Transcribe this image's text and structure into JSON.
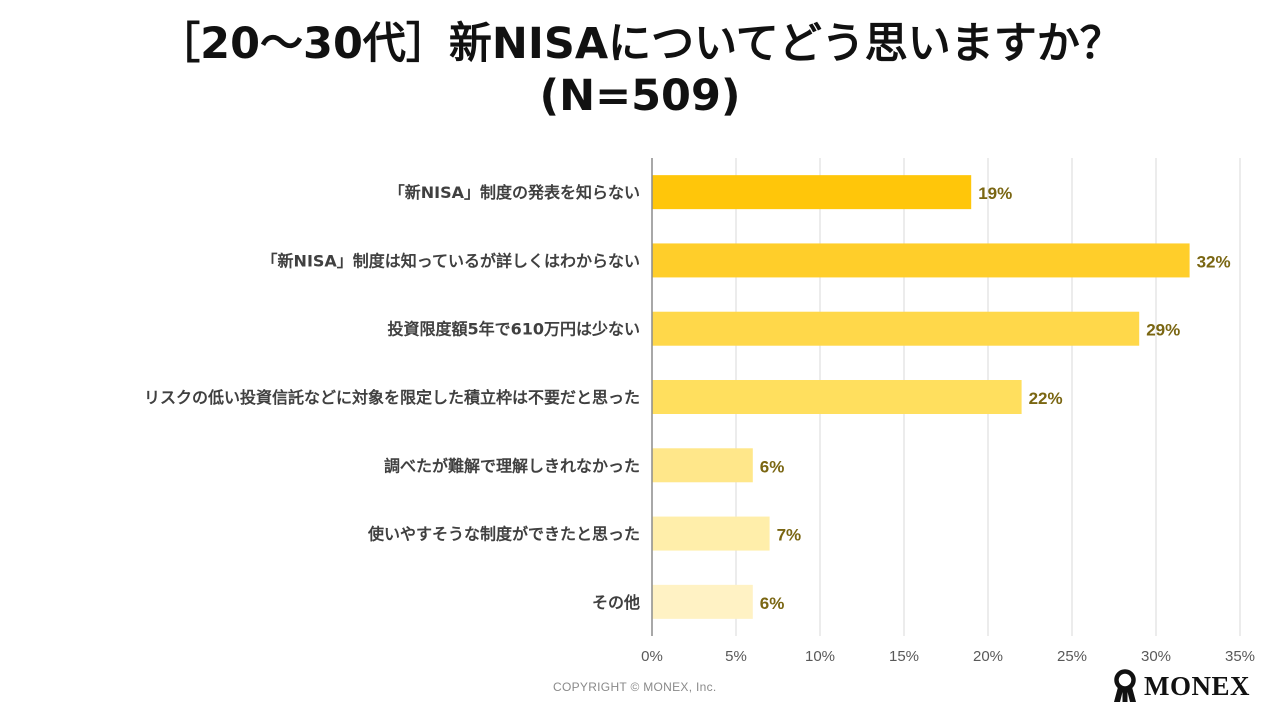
{
  "chart_data": {
    "type": "bar",
    "orientation": "horizontal",
    "title": "［20〜30代］新NISAについてどう思いますか？",
    "subtitle": "(N=509)",
    "categories": [
      "「新NISA」制度の発表を知らない",
      "「新NISA」制度は知っているが詳しくはわからない",
      "投資限度額5年で610万円は少ない",
      "リスクの低い投資信託などに対象を限定した積立枠は不要だと思った",
      "調べたが難解で理解しきれなかった",
      "使いやすそうな制度ができたと思った",
      "その他"
    ],
    "values": [
      19,
      32,
      29,
      22,
      6,
      7,
      6
    ],
    "value_labels": [
      "19%",
      "32%",
      "29%",
      "22%",
      "6%",
      "7%",
      "6%"
    ],
    "bar_colors": [
      "#FFC60A",
      "#FFCE2A",
      "#FFD84A",
      "#FFDF5E",
      "#FFE78A",
      "#FFEEAA",
      "#FFF2C4"
    ],
    "label_color": "#7A6612",
    "xlim": [
      0,
      35
    ],
    "xticks": [
      0,
      5,
      10,
      15,
      20,
      25,
      30,
      35
    ],
    "xtick_labels": [
      "0%",
      "5%",
      "10%",
      "15%",
      "20%",
      "25%",
      "30%",
      "35%"
    ],
    "xlabel": "",
    "ylabel": "",
    "grid": true
  },
  "footer": {
    "copyright": "COPYRIGHT © MONEX, Inc.",
    "logo_text": "MONEX"
  }
}
